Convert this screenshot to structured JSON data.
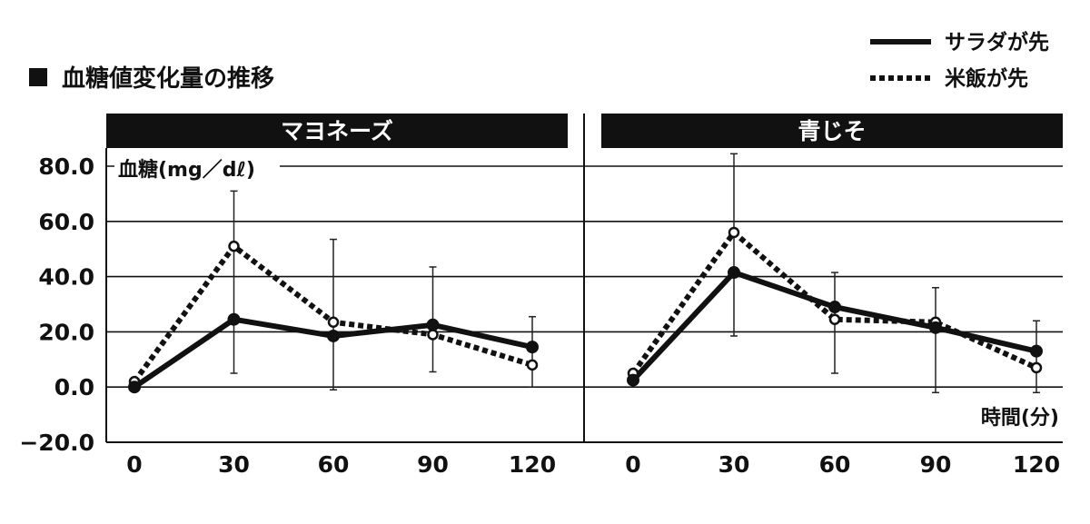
{
  "chart_data": {
    "type": "line",
    "title": "血糖値変化量の推移",
    "ylabel": "血糖(mg／dℓ)",
    "xlabel": "時間(分)",
    "ylim": [
      -20,
      80
    ],
    "y_ticks": [
      "80.0",
      "60.0",
      "40.0",
      "20.0",
      "0.0",
      "−20.0"
    ],
    "x": [
      0,
      30,
      60,
      90,
      120
    ],
    "x_tick_labels": [
      "0",
      "30",
      "60",
      "90",
      "120"
    ],
    "grid": true,
    "legend_position": "top-right",
    "legend": [
      {
        "name": "サラダが先",
        "style": "solid"
      },
      {
        "name": "米飯が先",
        "style": "dotted"
      }
    ],
    "panels": [
      {
        "title": "マヨネーズ",
        "series": [
          {
            "name": "サラダが先",
            "style": "solid",
            "values": [
              0,
              24.5,
              18.5,
              22.5,
              14.5
            ]
          },
          {
            "name": "米飯が先",
            "style": "dotted",
            "values": [
              2,
              51,
              23.5,
              19,
              8
            ],
            "error_low": [
              2,
              5,
              -1,
              5.5,
              0
            ],
            "error_high": [
              2,
              71,
              53.5,
              43.5,
              25.5
            ]
          }
        ]
      },
      {
        "title": "青じそ",
        "series": [
          {
            "name": "サラダが先",
            "style": "solid",
            "values": [
              2.5,
              41.5,
              29,
              21.5,
              13
            ]
          },
          {
            "name": "米飯が先",
            "style": "dotted",
            "values": [
              5,
              56,
              24.5,
              23.5,
              7
            ],
            "error_low": [
              5,
              18.5,
              5,
              -2,
              -2
            ],
            "error_high": [
              5,
              84.5,
              41.5,
              36,
              24
            ]
          }
        ]
      }
    ]
  }
}
